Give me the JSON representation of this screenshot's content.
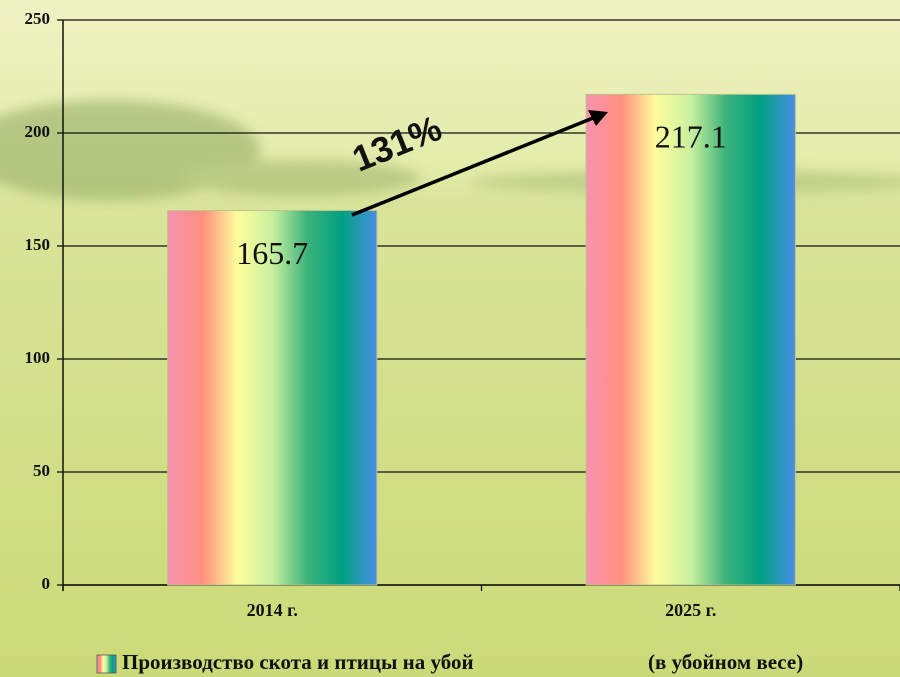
{
  "chart_data": {
    "type": "bar",
    "categories": [
      "2014 г.",
      "2025 г."
    ],
    "series": [
      {
        "name": "Производство скота и птицы на убой",
        "colors": [
          "#f792b0",
          "#ff8f7e",
          "#fdfd9c",
          "#c9f0a0",
          "#3cb37a",
          "#00a082",
          "#4a8ee6"
        ],
        "values": [
          165.7,
          217.1
        ]
      }
    ],
    "legend_note": "(в убойном весе)",
    "annotation": "131%",
    "ylim": [
      0,
      250
    ],
    "yticks": [
      0,
      50,
      100,
      150,
      200,
      250
    ],
    "grid": true
  }
}
